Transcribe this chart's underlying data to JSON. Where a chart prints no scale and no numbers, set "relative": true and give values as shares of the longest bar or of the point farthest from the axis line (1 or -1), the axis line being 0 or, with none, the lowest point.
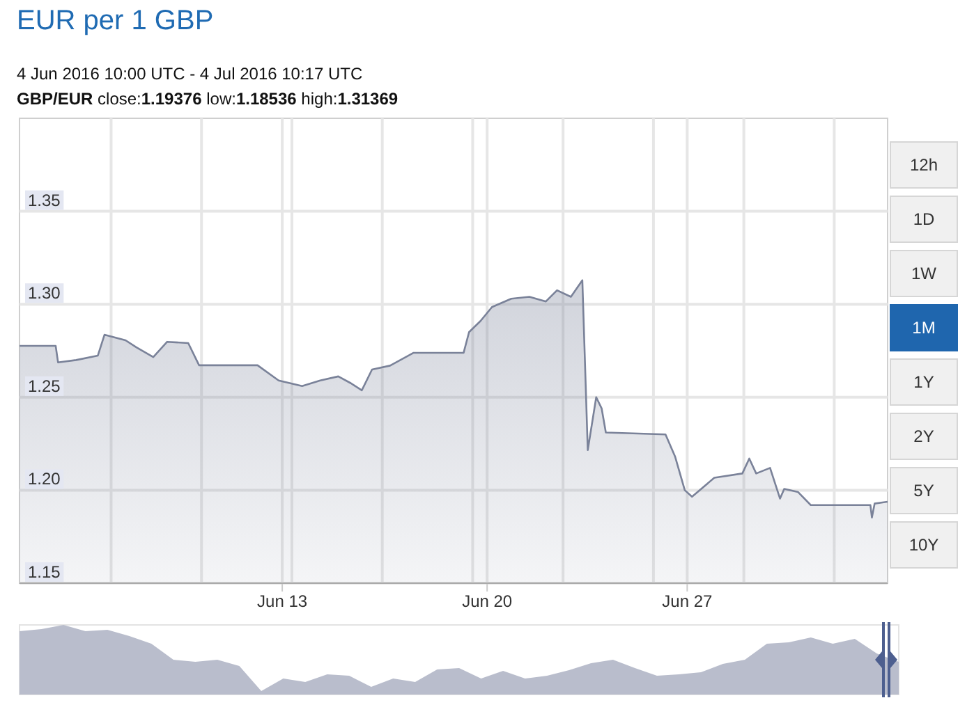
{
  "chart_data": [
    {
      "type": "area",
      "title": "EUR per 1 GBP",
      "subtitle": "4 Jun 2016 10:00 UTC - 4 Jul 2016 10:17 UTC",
      "annotations": [
        "GBP/EUR close:1.19376 low:1.18536 high:1.31369"
      ],
      "x": [
        "2016-06-04T10:00",
        "2016-06-05T16:00",
        "2016-06-05T18:00",
        "2016-06-06T09:00",
        "2016-06-07T03:00",
        "2016-06-07T08:30",
        "2016-06-08T02:00",
        "2016-06-08T11:00",
        "2016-06-09T01:00",
        "2016-06-09T12:30",
        "2016-06-10T06:00",
        "2016-06-10T15:00",
        "2016-06-12T15:30",
        "2016-06-13T09:00",
        "2016-06-14T04:30",
        "2016-06-14T19:30",
        "2016-06-15T10:30",
        "2016-06-15T21:00",
        "2016-06-16T06:00",
        "2016-06-16T14:30",
        "2016-06-17T05:30",
        "2016-06-18T01:00",
        "2016-06-19T18:30",
        "2016-06-19T23:00",
        "2016-06-20T08:30",
        "2016-06-20T18:00",
        "2016-06-21T10:00",
        "2016-06-22T01:00",
        "2016-06-22T14:45",
        "2016-06-23T00:00",
        "2016-06-23T11:30",
        "2016-06-23T21:00",
        "2016-06-24T01:30",
        "2016-06-24T08:30",
        "2016-06-24T13:00",
        "2016-06-24T16:30",
        "2016-06-26T18:00",
        "2016-06-27T02:00",
        "2016-06-27T10:00",
        "2016-06-27T16:00",
        "2016-06-28T10:30",
        "2016-06-29T09:45",
        "2016-06-29T15:30",
        "2016-06-29T21:15",
        "2016-06-30T08:45",
        "2016-06-30T17:00",
        "2016-06-30T20:30",
        "2016-07-01T08:00",
        "2016-07-01T18:30",
        "2016-07-03T20:00",
        "2016-07-03T21:15",
        "2016-07-03T23:30",
        "2016-07-04T10:17"
      ],
      "series": [
        {
          "color": "#7a8299",
          "values": [
            1.2776,
            1.2776,
            1.2687,
            1.27,
            1.2724,
            1.2836,
            1.2806,
            1.2768,
            1.2716,
            1.2798,
            1.2791,
            1.2672,
            1.2672,
            1.259,
            1.256,
            1.259,
            1.2612,
            1.2575,
            1.2537,
            1.2649,
            1.267,
            1.2739,
            1.2739,
            1.285,
            1.291,
            1.2985,
            1.303,
            1.304,
            1.3015,
            1.3075,
            1.304,
            1.3129,
            1.2216,
            1.25,
            1.244,
            1.231,
            1.23,
            1.218,
            1.2,
            1.1965,
            1.2067,
            1.209,
            1.217,
            1.209,
            1.212,
            1.1955,
            1.2007,
            1.199,
            1.192,
            1.192,
            1.1853,
            1.1928,
            1.1938
          ]
        }
      ],
      "xlim": [
        "2016-06-04T10:00",
        "2016-07-04T10:17"
      ],
      "xticks": [
        {
          "value": "2016-06-07T14:00",
          "label": null
        },
        {
          "value": "2016-06-10T17:00",
          "label": null
        },
        {
          "value": "2016-06-13T12:00",
          "label": "Jun 13"
        },
        {
          "value": "2016-06-13T20:00",
          "label": null
        },
        {
          "value": "2016-06-16T23:00",
          "label": null
        },
        {
          "value": "2016-06-20T02:00",
          "label": null
        },
        {
          "value": "2016-06-20T14:00",
          "label": "Jun 20"
        },
        {
          "value": "2016-06-23T05:00",
          "label": null
        },
        {
          "value": "2016-06-26T08:00",
          "label": null
        },
        {
          "value": "2016-06-27T12:00",
          "label": "Jun 27"
        },
        {
          "value": "2016-06-29T11:00",
          "label": null
        },
        {
          "value": "2016-07-02T14:00",
          "label": null
        }
      ],
      "ylim": [
        1.15,
        1.4
      ],
      "yticks": [
        1.15,
        {
          "value": 1.2,
          "label": "1.20"
        },
        1.25,
        {
          "value": 1.3,
          "label": "1.30"
        },
        1.35
      ],
      "grid": true
    },
    {
      "type": "area",
      "relative": true,
      "categories": [
        null,
        null,
        null,
        null,
        null,
        null,
        null,
        null,
        null,
        null,
        null,
        null,
        null,
        null,
        null,
        null,
        null,
        null,
        null,
        null,
        null,
        null,
        null,
        null,
        null,
        null,
        null,
        null,
        null,
        null,
        null,
        null,
        null,
        null,
        null,
        null,
        null,
        null,
        null,
        null,
        null
      ],
      "series": [
        {
          "color": "#b9bdcc",
          "values": [
            0.91,
            0.94,
            1.0,
            0.91,
            0.93,
            0.84,
            0.73,
            0.5,
            0.47,
            0.5,
            0.41,
            0.05,
            0.23,
            0.18,
            0.29,
            0.27,
            0.11,
            0.23,
            0.18,
            0.36,
            0.38,
            0.23,
            0.34,
            0.23,
            0.27,
            0.35,
            0.45,
            0.5,
            0.38,
            0.27,
            0.29,
            0.32,
            0.44,
            0.5,
            0.73,
            0.75,
            0.82,
            0.73,
            0.8,
            0.59,
            0.47
          ]
        }
      ]
    },
    {
      "type": "other",
      "categories": [
        "12h",
        "1D",
        "1W",
        "1M",
        "1Y",
        "2Y",
        "5Y",
        "10Y"
      ],
      "colors": [
        "#f0f0f0",
        "#f0f0f0",
        "#f0f0f0",
        "#1f66ae",
        "#f0f0f0",
        "#f0f0f0",
        "#f0f0f0",
        "#f0f0f0"
      ]
    }
  ]
}
